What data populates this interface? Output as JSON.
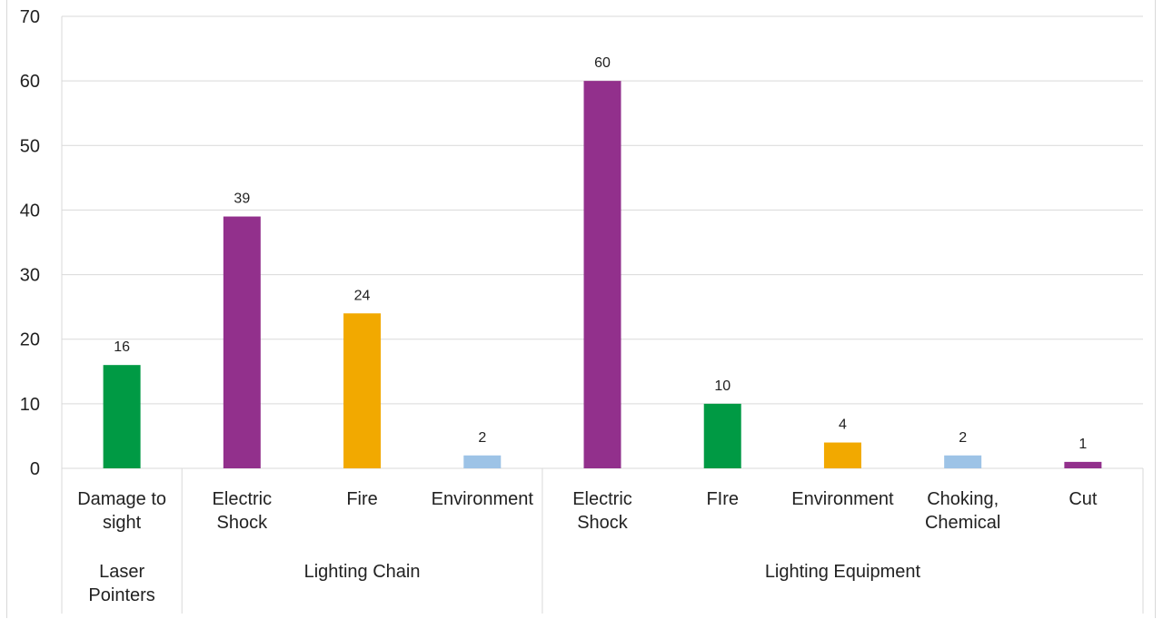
{
  "chart_data": {
    "type": "bar",
    "title": "",
    "xlabel": "",
    "ylabel": "",
    "ylim": [
      0,
      70
    ],
    "yticks": [
      0,
      10,
      20,
      30,
      40,
      50,
      60,
      70
    ],
    "grid": true,
    "legend": "none",
    "groups": [
      {
        "name": "Laser Pointers",
        "name_lines": [
          "Laser",
          "Pointers"
        ],
        "start": 0,
        "count": 1
      },
      {
        "name": "Lighting Chain",
        "name_lines": [
          "Lighting Chain"
        ],
        "start": 1,
        "count": 3
      },
      {
        "name": "Lighting Equipment",
        "name_lines": [
          "Lighting Equipment"
        ],
        "start": 4,
        "count": 5
      }
    ],
    "categories": [
      {
        "lines": [
          "Damage to",
          "sight"
        ]
      },
      {
        "lines": [
          "Electric",
          "Shock"
        ]
      },
      {
        "lines": [
          "Fire"
        ]
      },
      {
        "lines": [
          "Environment"
        ]
      },
      {
        "lines": [
          "Electric",
          "Shock"
        ]
      },
      {
        "lines": [
          "FIre"
        ]
      },
      {
        "lines": [
          "Environment"
        ]
      },
      {
        "lines": [
          "Choking,",
          "Chemical"
        ]
      },
      {
        "lines": [
          "Cut"
        ]
      }
    ],
    "values": [
      16,
      39,
      24,
      2,
      60,
      10,
      4,
      2,
      1
    ],
    "colors": [
      "#009a44",
      "#92308c",
      "#f2a900",
      "#9dc3e6",
      "#92308c",
      "#009a44",
      "#f2a900",
      "#9dc3e6",
      "#92308c"
    ]
  }
}
